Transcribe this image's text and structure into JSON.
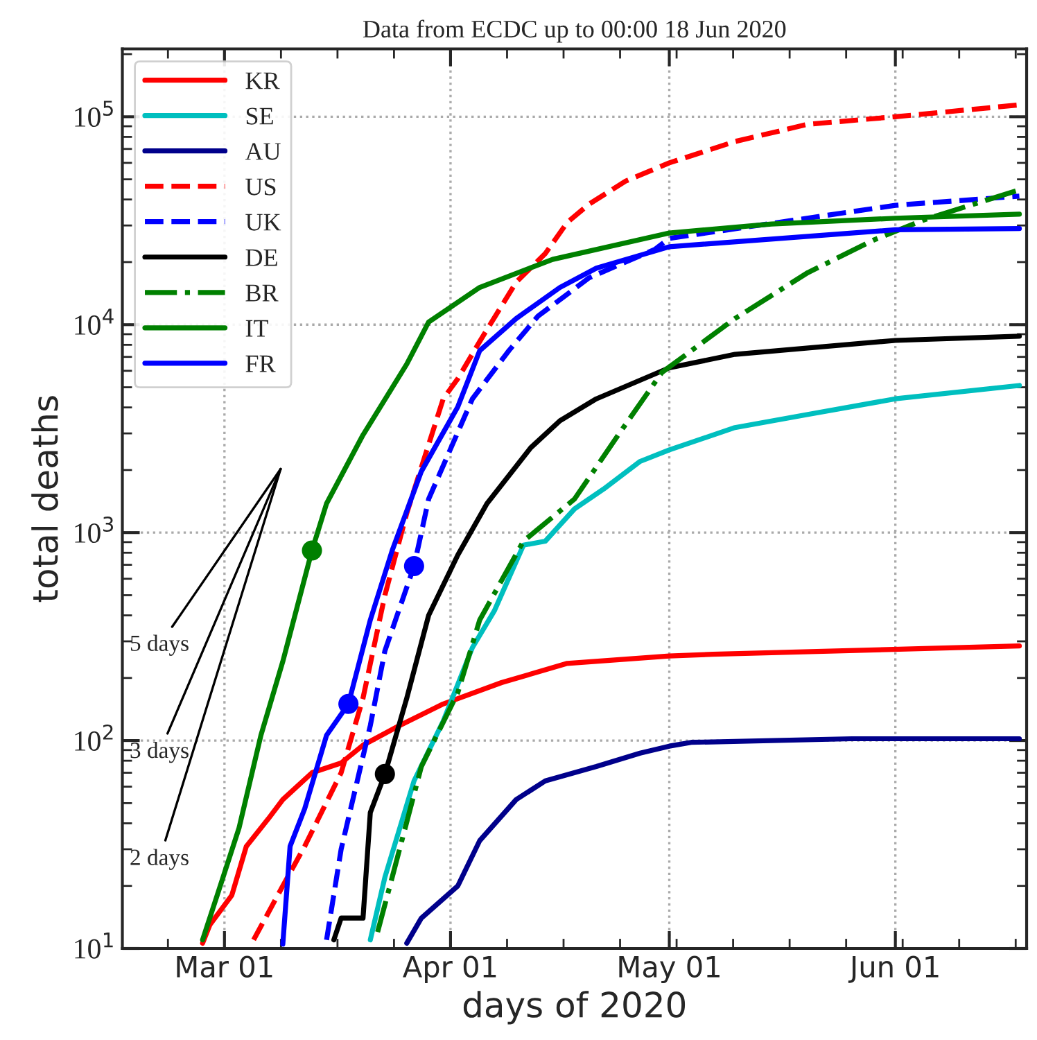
{
  "chart_data": {
    "type": "line",
    "title": "Data from ECDC up to 00:00 18 Jun 2020",
    "xlabel": "days of 2020",
    "ylabel": "total deaths",
    "log": true,
    "grid": true,
    "legend": "top left",
    "xlim": [
      "2020-02-16",
      "2020-06-19"
    ],
    "ylim": [
      10,
      212000
    ],
    "xticks": [
      {
        "value": "2020-03-01",
        "label": "Mar 01"
      },
      {
        "value": "2020-04-01",
        "label": "Apr 01"
      },
      {
        "value": "2020-05-01",
        "label": "May 01"
      },
      {
        "value": "2020-06-01",
        "label": "Jun 01"
      }
    ],
    "yticks": [
      {
        "value": 10,
        "label": "10$^{1}$"
      },
      {
        "value": 100,
        "label": "10$^{2}$"
      },
      {
        "value": 1000,
        "label": "10$^{3}$"
      },
      {
        "value": 10000,
        "label": "10$^{4}$"
      },
      {
        "value": 100000,
        "label": "10$^{5}$"
      }
    ],
    "series": [
      {
        "name": "KR",
        "color": "#ff0000",
        "line_style": "solid",
        "x": [
          "2020-02-27",
          "2020-02-28",
          "2020-03-02",
          "2020-03-04",
          "2020-03-07",
          "2020-03-09",
          "2020-03-13",
          "2020-03-17",
          "2020-03-20",
          "2020-03-25",
          "2020-03-31",
          "2020-04-08",
          "2020-04-17",
          "2020-05-01",
          "2020-05-07",
          "2020-06-18"
        ],
        "values": [
          10.6,
          13,
          18,
          31,
          42,
          52,
          70,
          78,
          95,
          118,
          150,
          190,
          235,
          255,
          260,
          285
        ]
      },
      {
        "name": "SE",
        "color": "#00bfbf",
        "line_style": "solid",
        "x": [
          "2020-03-21",
          "2020-03-23",
          "2020-03-27",
          "2020-03-31",
          "2020-04-04",
          "2020-04-07",
          "2020-04-11",
          "2020-04-14",
          "2020-04-18",
          "2020-04-22",
          "2020-04-27",
          "2020-05-01",
          "2020-05-10",
          "2020-05-20",
          "2020-06-01",
          "2020-06-18"
        ],
        "values": [
          11,
          22,
          64,
          124,
          280,
          420,
          870,
          910,
          1300,
          1620,
          2200,
          2500,
          3200,
          3700,
          4400,
          5100
        ]
      },
      {
        "name": "AU",
        "color": "#00008b",
        "line_style": "solid",
        "x": [
          "2020-03-26",
          "2020-03-28",
          "2020-04-02",
          "2020-04-05",
          "2020-04-10",
          "2020-04-14",
          "2020-04-21",
          "2020-04-27",
          "2020-05-01",
          "2020-05-04",
          "2020-05-26",
          "2020-06-18"
        ],
        "values": [
          10.6,
          14,
          20,
          33,
          52,
          64,
          75,
          87,
          94,
          98,
          102,
          102
        ]
      },
      {
        "name": "US",
        "color": "#ff0000",
        "line_style": "dashed",
        "x": [
          "2020-03-05",
          "2020-03-09",
          "2020-03-12",
          "2020-03-17",
          "2020-03-20",
          "2020-03-23",
          "2020-03-26",
          "2020-03-31",
          "2020-04-02",
          "2020-04-05",
          "2020-04-10",
          "2020-04-14",
          "2020-04-17",
          "2020-04-20",
          "2020-04-25",
          "2020-05-01",
          "2020-05-10",
          "2020-05-20",
          "2020-06-01",
          "2020-06-18"
        ],
        "values": [
          11,
          20,
          31,
          70,
          160,
          500,
          1240,
          4400,
          5500,
          8300,
          16000,
          22000,
          31000,
          38000,
          49000,
          60000,
          76000,
          92000,
          100000,
          114000
        ]
      },
      {
        "name": "UK",
        "color": "#0000ff",
        "line_style": "dashed",
        "x": [
          "2020-03-15",
          "2020-03-17",
          "2020-03-21",
          "2020-03-23",
          "2020-03-27",
          "2020-03-29",
          "2020-04-04",
          "2020-04-09",
          "2020-04-13",
          "2020-04-20",
          "2020-04-29",
          "2020-05-01",
          "2020-06-01",
          "2020-06-18"
        ],
        "values": [
          11,
          30,
          118,
          270,
          690,
          1450,
          4400,
          7500,
          11000,
          16800,
          23000,
          26000,
          37500,
          41500
        ]
      },
      {
        "name": "DE",
        "color": "#000000",
        "line_style": "solid",
        "x": [
          "2020-03-16",
          "2020-03-17",
          "2020-03-20",
          "2020-03-21",
          "2020-03-23",
          "2020-03-26",
          "2020-03-29",
          "2020-04-02",
          "2020-04-06",
          "2020-04-12",
          "2020-04-16",
          "2020-04-21",
          "2020-05-01",
          "2020-05-10",
          "2020-06-01",
          "2020-06-18"
        ],
        "values": [
          11,
          14,
          14,
          45,
          69,
          160,
          400,
          780,
          1380,
          2560,
          3450,
          4400,
          6200,
          7200,
          8400,
          8800
        ]
      },
      {
        "name": "BR",
        "color": "#008000",
        "line_style": "dashdot",
        "x": [
          "2020-03-22",
          "2020-03-24",
          "2020-03-28",
          "2020-04-02",
          "2020-04-05",
          "2020-04-11",
          "2020-04-18",
          "2020-04-24",
          "2020-04-30",
          "2020-05-10",
          "2020-05-20",
          "2020-05-29",
          "2020-06-05",
          "2020-06-18"
        ],
        "values": [
          12,
          22,
          75,
          170,
          380,
          910,
          1450,
          2950,
          5900,
          10700,
          17800,
          25500,
          32000,
          44500
        ]
      },
      {
        "name": "IT",
        "color": "#008000",
        "line_style": "solid",
        "x": [
          "2020-02-27",
          "2020-02-29",
          "2020-03-03",
          "2020-03-06",
          "2020-03-09",
          "2020-03-13",
          "2020-03-15",
          "2020-03-20",
          "2020-03-26",
          "2020-03-29",
          "2020-04-05",
          "2020-04-15",
          "2020-05-01",
          "2020-05-15",
          "2020-06-01",
          "2020-06-18"
        ],
        "values": [
          11,
          18,
          38,
          106,
          240,
          820,
          1380,
          2950,
          6460,
          10300,
          15100,
          20600,
          27600,
          30500,
          32500,
          34000
        ]
      },
      {
        "name": "FR",
        "color": "#0000ff",
        "line_style": "solid",
        "x": [
          "2020-03-09",
          "2020-03-10",
          "2020-03-12",
          "2020-03-15",
          "2020-03-18",
          "2020-03-21",
          "2020-03-24",
          "2020-03-28",
          "2020-04-02",
          "2020-04-05",
          "2020-04-10",
          "2020-04-16",
          "2020-04-21",
          "2020-05-01",
          "2020-06-01",
          "2020-06-18"
        ],
        "values": [
          10.5,
          31,
          47,
          106,
          150,
          380,
          820,
          1970,
          4030,
          7500,
          10700,
          15100,
          18700,
          23700,
          28600,
          29000
        ]
      },
      {
        "type": "scatter",
        "marker": "circle",
        "x": [
          "2020-03-13",
          "2020-03-18",
          "2020-03-27",
          "2020-03-23"
        ],
        "values": [
          820,
          150,
          690,
          69
        ],
        "colors": [
          "#008000",
          "#0000ff",
          "#0000ff",
          "#000000"
        ]
      }
    ],
    "annotations": [
      "5 days",
      "3 days",
      "2 days"
    ]
  }
}
